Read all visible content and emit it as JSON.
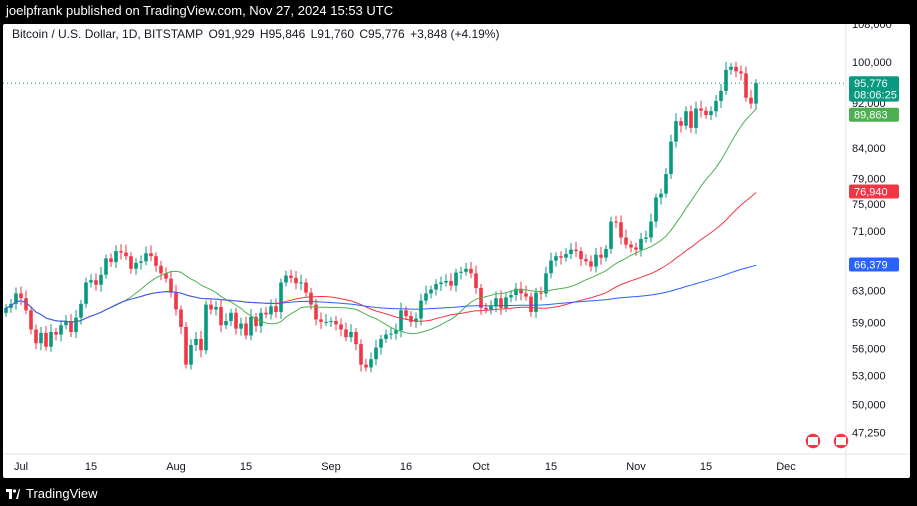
{
  "publisher_line": "joelpfrank published on TradingView.com, Nov 27, 2024 15:53 UTC",
  "legend": {
    "symbol": "Bitcoin / U.S. Dollar, 1D, BITSTAMP",
    "open": "O91,929",
    "high": "H95,846",
    "low": "L91,760",
    "close": "C95,776",
    "change": "+3,848 (+4.19%)"
  },
  "footer": {
    "brand": "TradingView"
  },
  "colors": {
    "up": "#089981",
    "down": "#f23645",
    "ma_fast": "#4caf50",
    "ma_mid": "#f23645",
    "ma_slow": "#2962ff",
    "last": "#089981"
  },
  "chart_data": {
    "type": "candlestick",
    "y_scale": "log",
    "ylim": [
      45700,
      109500
    ],
    "y_ticks": [
      108000,
      100000,
      92000,
      84000,
      79000,
      75000,
      71000,
      63000,
      59000,
      56000,
      53000,
      50000,
      47250
    ],
    "x_ticks": [
      {
        "label": "Jul",
        "index": 3
      },
      {
        "label": "15",
        "index": 17
      },
      {
        "label": "Aug",
        "index": 34
      },
      {
        "label": "15",
        "index": 48
      },
      {
        "label": "Sep",
        "index": 65
      },
      {
        "label": "16",
        "index": 80
      },
      {
        "label": "Oct",
        "index": 95
      },
      {
        "label": "15",
        "index": 109
      },
      {
        "label": "Nov",
        "index": 126
      },
      {
        "label": "15",
        "index": 140
      },
      {
        "label": "Dec",
        "index": 156
      }
    ],
    "price_tags": [
      {
        "label": "95,776",
        "value": 95776,
        "color": "#089981"
      },
      {
        "label": "08:06:25",
        "value": 93600,
        "color": "#089981"
      },
      {
        "label": "89,863",
        "value": 89863,
        "color": "#4caf50"
      },
      {
        "label": "76,940",
        "value": 76940,
        "color": "#f23645"
      },
      {
        "label": "66,379",
        "value": 66379,
        "color": "#2962ff"
      }
    ],
    "closes": [
      60800,
      61300,
      62600,
      62000,
      60500,
      58200,
      56600,
      57800,
      56200,
      57900,
      57600,
      58700,
      59200,
      57900,
      59600,
      61300,
      64000,
      64300,
      63700,
      65000,
      67200,
      66700,
      68200,
      68000,
      67500,
      65800,
      66600,
      66800,
      67900,
      67500,
      66200,
      65200,
      64500,
      62700,
      60600,
      58500,
      54200,
      56400,
      57100,
      55800,
      61200,
      60600,
      60900,
      58700,
      59200,
      60200,
      58300,
      58900,
      57500,
      59700,
      58600,
      60200,
      60000,
      61000,
      60300,
      64000,
      64900,
      64600,
      63900,
      64000,
      62700,
      61200,
      59400,
      59100,
      59100,
      59200,
      58800,
      58200,
      57300,
      57900,
      56500,
      54200,
      53900,
      54800,
      56100,
      57100,
      57600,
      57700,
      58100,
      60500,
      59800,
      59100,
      59500,
      61700,
      62600,
      63100,
      63800,
      64000,
      64200,
      63600,
      65300,
      65400,
      65800,
      65200,
      63300,
      60800,
      60600,
      61000,
      62000,
      60800,
      62100,
      62400,
      63200,
      62600,
      62200,
      60300,
      62700,
      62600,
      65200,
      66900,
      67500,
      67300,
      67800,
      68400,
      68200,
      67100,
      66800,
      66100,
      67700,
      67300,
      68500,
      72400,
      72300,
      70100,
      69100,
      68700,
      68400,
      69900,
      70100,
      72400,
      76000,
      76600,
      79700,
      85100,
      88700,
      87900,
      90500,
      87500,
      91000,
      90600,
      89800,
      90500,
      92400,
      94300,
      98400,
      99000,
      98100,
      97700,
      93000,
      91900,
      95800
    ]
  }
}
